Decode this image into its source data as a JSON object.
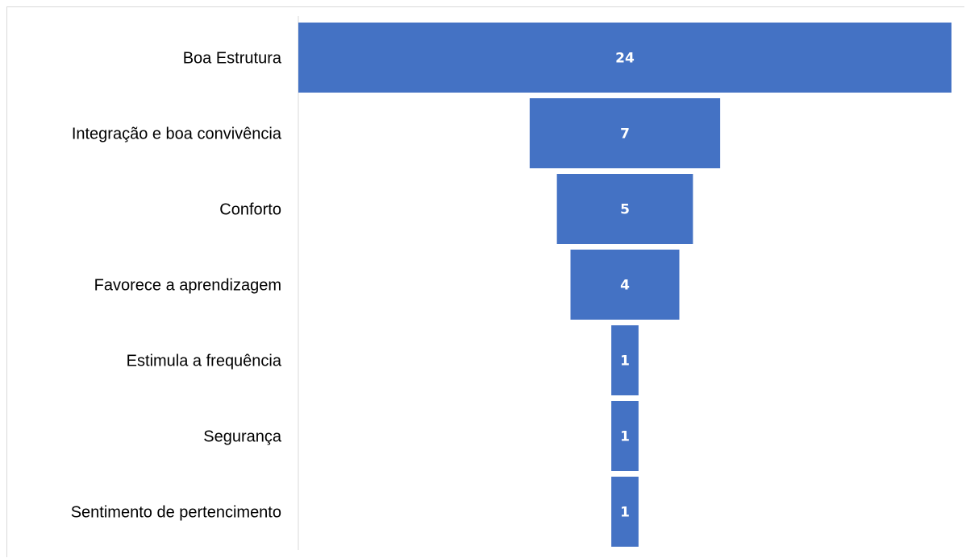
{
  "chart_data": {
    "type": "bar",
    "orientation": "horizontal-funnel",
    "categories": [
      "Boa Estrutura",
      "Integração e boa convivência",
      "Conforto",
      "Favorece a aprendizagem",
      "Estimula a frequência",
      "Segurança",
      "Sentimento de pertencimento"
    ],
    "values": [
      24,
      7,
      5,
      4,
      1,
      1,
      1
    ],
    "title": "",
    "xlabel": "",
    "ylabel": "",
    "grid": false,
    "legend": "none",
    "data_labels": true
  },
  "colors": {
    "bar": "#4472c4",
    "bar_label": "#ffffff",
    "axis_line": "#d9d9d9",
    "category_text": "#000000"
  }
}
